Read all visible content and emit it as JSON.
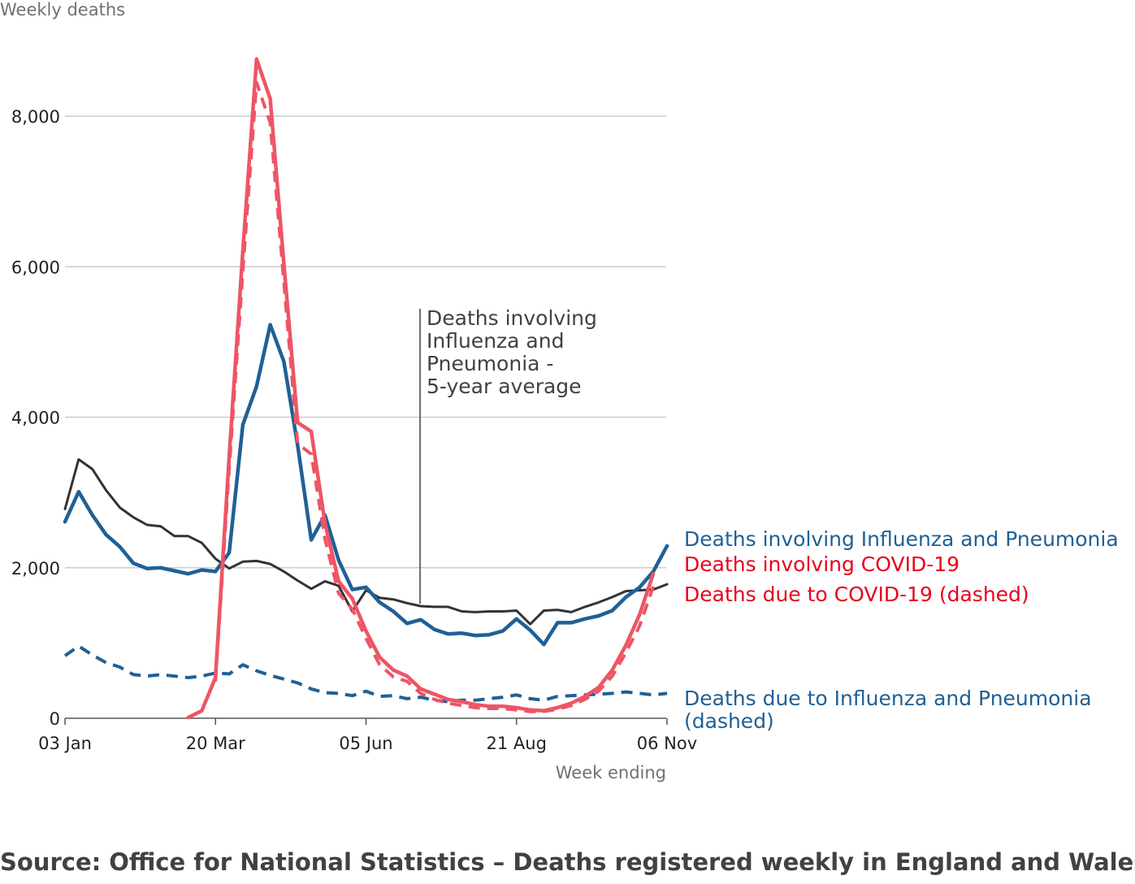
{
  "chart_data": {
    "type": "line",
    "ylabel": "Weekly deaths",
    "xlabel": "Week ending",
    "ylim": [
      0,
      8800
    ],
    "y_ticks": [
      0,
      2000,
      4000,
      6000,
      8000
    ],
    "y_tick_labels": [
      "0",
      "2,000",
      "4,000",
      "6,000",
      "8,000"
    ],
    "x_tick_labels": [
      "03 Jan",
      "20 Mar",
      "05 Jun",
      "21 Aug",
      "06 Nov"
    ],
    "x_tick_weeks": [
      1,
      12,
      23,
      34,
      45
    ],
    "grid": true,
    "series": [
      {
        "key": "avg",
        "name": "Deaths involving Influenza and Pneumonia - 5-year average",
        "color": "#333333",
        "style": "solid-thin",
        "start_week": 1,
        "values": [
          2780,
          3440,
          3310,
          3030,
          2800,
          2670,
          2570,
          2550,
          2420,
          2420,
          2330,
          2120,
          1990,
          2080,
          2090,
          2050,
          1950,
          1830,
          1720,
          1820,
          1760,
          1420,
          1700,
          1600,
          1580,
          1530,
          1490,
          1480,
          1480,
          1420,
          1410,
          1420,
          1420,
          1430,
          1250,
          1430,
          1440,
          1410,
          1480,
          1540,
          1610,
          1690,
          1700,
          1710,
          1780
        ]
      },
      {
        "key": "inv_flu",
        "name": "Deaths involving Influenza and Pneumonia",
        "color": "#206095",
        "style": "solid",
        "start_week": 1,
        "values": [
          2610,
          3010,
          2700,
          2440,
          2280,
          2060,
          1990,
          2000,
          1960,
          1920,
          1970,
          1950,
          2200,
          3900,
          4410,
          5230,
          4740,
          3630,
          2370,
          2700,
          2100,
          1710,
          1740,
          1540,
          1420,
          1260,
          1310,
          1180,
          1120,
          1130,
          1100,
          1110,
          1160,
          1320,
          1170,
          980,
          1270,
          1270,
          1320,
          1360,
          1430,
          1610,
          1740,
          1950,
          2290
        ]
      },
      {
        "key": "due_flu",
        "name": "Deaths due to Influenza and Pneumonia (dashed)",
        "color": "#206095",
        "style": "dashed",
        "start_week": 1,
        "values": [
          830,
          960,
          840,
          740,
          680,
          580,
          560,
          580,
          560,
          540,
          560,
          600,
          590,
          710,
          630,
          570,
          520,
          470,
          390,
          340,
          330,
          300,
          360,
          290,
          300,
          260,
          280,
          240,
          220,
          240,
          240,
          260,
          280,
          310,
          260,
          240,
          290,
          300,
          310,
          320,
          330,
          350,
          330,
          310,
          330
        ]
      },
      {
        "key": "inv_covid",
        "name": "Deaths involving COVID-19",
        "color": "#ee5565",
        "style": "solid",
        "start_week": 10,
        "values": [
          10,
          100,
          540,
          3480,
          6210,
          8760,
          8230,
          6040,
          3930,
          3810,
          2590,
          1820,
          1590,
          1160,
          810,
          640,
          560,
          390,
          320,
          250,
          220,
          180,
          160,
          160,
          140,
          110,
          100,
          140,
          200,
          290,
          410,
          640,
          970,
          1380,
          1920
        ]
      },
      {
        "key": "due_covid",
        "name": "Deaths due to COVID-19 (dashed)",
        "color": "#ee5565",
        "style": "dashed",
        "start_week": 12,
        "values": [
          490,
          3320,
          5940,
          8450,
          7910,
          5800,
          3650,
          3510,
          2380,
          1660,
          1450,
          1060,
          710,
          550,
          490,
          330,
          250,
          200,
          170,
          140,
          130,
          130,
          110,
          90,
          90,
          120,
          170,
          250,
          360,
          560,
          870,
          1230,
          1750
        ]
      }
    ],
    "annotations": {
      "avg_callout": [
        "Deaths involving",
        "Influenza and",
        "Pneumonia -",
        "5-year average"
      ],
      "inv_flu_label": "Deaths involving Influenza and Pneumonia",
      "inv_covid_label": "Deaths involving COVID-19",
      "due_covid_label": "Deaths due to COVID-19 (dashed)",
      "due_flu_label": [
        "Deaths due to Influenza and Pneumonia",
        "(dashed)"
      ]
    }
  },
  "source": "Source: Office for National Statistics – Deaths registered weekly in England and Wales",
  "colors": {
    "grid": "#cccccc",
    "axis": "#555555",
    "annotation_dark": "#414042",
    "flu": "#206095",
    "covid": "#ee5565",
    "covid_label": "#e8001c"
  }
}
